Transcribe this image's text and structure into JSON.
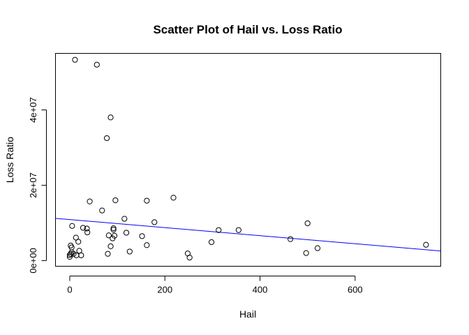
{
  "chart_data": {
    "type": "scatter",
    "title": "Scatter Plot of Hail vs. Loss Ratio",
    "xlabel": "Hail",
    "ylabel": "Loss Ratio",
    "xlim": [
      -30,
      780
    ],
    "ylim": [
      -1500000,
      55000000
    ],
    "x_ticks": [
      0,
      200,
      400,
      600
    ],
    "x_tick_labels": [
      "0",
      "200",
      "400",
      "600"
    ],
    "y_ticks": [
      0,
      20000000,
      40000000
    ],
    "y_tick_labels": [
      "0e+00",
      "2e+07",
      "4e+07"
    ],
    "grid": false,
    "box": true,
    "point_color": "#000000",
    "line_color": "#0000ff",
    "regression_line": {
      "intercept": 10900000,
      "slope": -10700
    },
    "x": [
      11,
      57,
      86,
      78,
      42,
      68,
      96,
      162,
      218,
      115,
      178,
      92,
      92,
      5,
      28,
      36,
      37,
      82,
      90,
      94,
      86,
      119,
      152,
      162,
      13,
      18,
      4,
      2,
      4,
      20,
      0,
      0,
      2,
      8,
      14,
      24,
      80,
      126,
      248,
      252,
      298,
      313,
      355,
      464,
      500,
      497,
      521,
      749
    ],
    "y": [
      53300000,
      52000000,
      38000000,
      32500000,
      15700000,
      13300000,
      16000000,
      15900000,
      16700000,
      11100000,
      10200000,
      8600000,
      8200000,
      9200000,
      8700000,
      8500000,
      7500000,
      6700000,
      5900000,
      6600000,
      3800000,
      7400000,
      6500000,
      4100000,
      6100000,
      5000000,
      3500000,
      4000000,
      2200000,
      2600000,
      1500000,
      1000000,
      1800000,
      1800000,
      1400000,
      1400000,
      1800000,
      2400000,
      1900000,
      800000,
      4900000,
      8100000,
      8100000,
      5700000,
      9900000,
      2000000,
      3300000,
      4200000
    ]
  }
}
